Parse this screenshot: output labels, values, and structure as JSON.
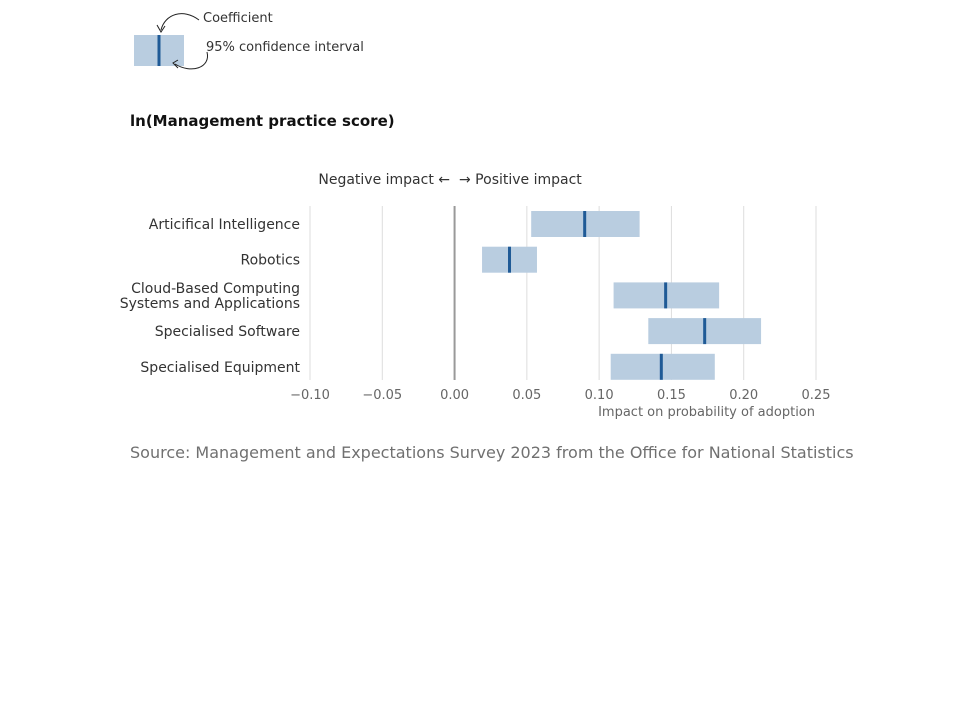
{
  "legend": {
    "coefficient_label": "Coefficient",
    "ci_label": "95% confidence interval"
  },
  "title": "ln(Management practice score)",
  "direction": {
    "negative": "Negative impact ←",
    "positive": "→ Positive impact"
  },
  "source": "Source: Management and Expectations Survey 2023 from the Office for National Statistics",
  "colors": {
    "ci_fill": "#b9cde0",
    "coefficient": "#1f5a96",
    "gridline": "#dddddd",
    "zero_line": "#999999",
    "tick_text": "#666666"
  },
  "chart_data": {
    "type": "forest",
    "title": "ln(Management practice score)",
    "xlabel": "Impact on probability of adoption",
    "xlim": [
      -0.1,
      0.25
    ],
    "xticks": [
      -0.1,
      -0.05,
      0.0,
      0.05,
      0.1,
      0.15,
      0.2,
      0.25
    ],
    "xtick_labels": [
      "−0.10",
      "−0.05",
      "0.00",
      "0.05",
      "0.10",
      "0.15",
      "0.20",
      "0.25"
    ],
    "grid": true,
    "items": [
      {
        "label": [
          "Articifical Intelligence"
        ],
        "coef": 0.09,
        "ci_low": 0.053,
        "ci_high": 0.128
      },
      {
        "label": [
          "Robotics"
        ],
        "coef": 0.038,
        "ci_low": 0.019,
        "ci_high": 0.057
      },
      {
        "label": [
          "Cloud-Based Computing",
          "Systems and Applications"
        ],
        "coef": 0.146,
        "ci_low": 0.11,
        "ci_high": 0.183
      },
      {
        "label": [
          "Specialised Software"
        ],
        "coef": 0.173,
        "ci_low": 0.134,
        "ci_high": 0.212
      },
      {
        "label": [
          "Specialised Equipment"
        ],
        "coef": 0.143,
        "ci_low": 0.108,
        "ci_high": 0.18
      }
    ]
  }
}
